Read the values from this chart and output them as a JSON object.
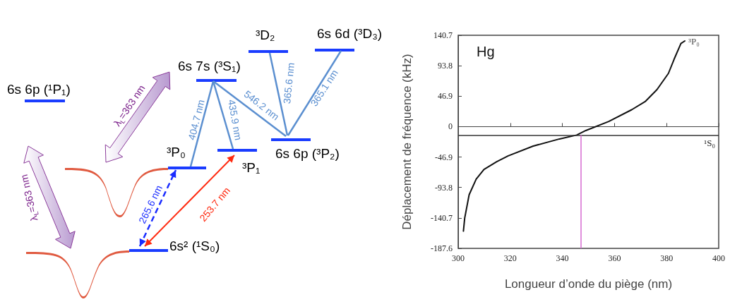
{
  "chart_data": [
    {
      "type": "other",
      "annotations": [
        "6s 6p (¹P₁)",
        "6s 7s (³S₁)",
        "³D₂",
        "6s 6d (³D₃)",
        "³P₀",
        "³P₁",
        "6s 6p (³P₂)",
        "6s² (¹S₀)",
        "404.7 nm",
        "435.9 nm",
        "546.2 nm",
        "365.6 nm",
        "365.1 nm",
        "265.6 nm",
        "253.7 nm",
        "λ$_{L}$=363 nm",
        "λ$_{L}$=363 nm"
      ]
    },
    {
      "type": "line",
      "xlabel": "Longueur d’onde du piège (nm)",
      "ylabel": "Déplacement de fréquence (kHz)",
      "x": [
        302,
        302.5,
        304.2,
        306.9,
        309.9,
        314.8,
        319.2,
        328.8,
        338.9,
        345.5,
        349,
        357.8,
        366.6,
        371.9,
        376.3,
        380.7,
        382.9,
        385.5,
        387
      ],
      "values": [
        -161,
        -141,
        -105,
        -81,
        -66,
        -54,
        -45,
        -30,
        -19,
        -13,
        -6,
        8,
        26,
        39,
        57,
        82,
        104,
        128,
        132
      ],
      "color": "#111111",
      "xlim": [
        300,
        400
      ],
      "xticks": [
        300,
        320,
        340,
        360,
        380,
        400
      ],
      "ylim": [
        -187.6,
        140.7
      ],
      "yticks": [
        -187.6,
        -140.7,
        -93.8,
        -46.9,
        0,
        46.9,
        93.8,
        140.7
      ],
      "ref_lines": [
        {
          "axis": "y",
          "value": -13,
          "label": "¹S₀",
          "color": "#333333"
        },
        {
          "axis": "x",
          "value": 347,
          "color": "#d66ad0"
        }
      ],
      "annotations": [
        "Hg",
        {
          "text": "³P₀",
          "x": 387,
          "y": 132
        }
      ]
    }
  ]
}
